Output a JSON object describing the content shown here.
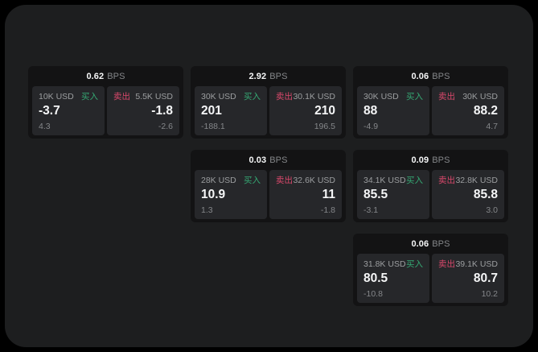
{
  "labels": {
    "bps_unit": "BPS",
    "buy": "买入",
    "sell": "卖出"
  },
  "colors": {
    "outer_bg": "#000000",
    "page_bg": "#1d1e1f",
    "card_bg": "#131314",
    "panel_bg": "#26272a",
    "text_primary": "#f5f6f7",
    "text_label": "#9c9ea0",
    "text_muted": "#85878a",
    "buy_green": "#35a873",
    "sell_red": "#d9486b"
  },
  "cards": [
    {
      "row": 1,
      "col": 1,
      "bps": "0.62",
      "buy": {
        "amount": "10K USD",
        "price": "-3.7",
        "delta": "4.3"
      },
      "sell": {
        "amount": "5.5K USD",
        "price": "-1.8",
        "delta": "-2.6"
      }
    },
    {
      "row": 1,
      "col": 2,
      "bps": "2.92",
      "buy": {
        "amount": "30K USD",
        "price": "201",
        "delta": "-188.1"
      },
      "sell": {
        "amount": "30.1K USD",
        "price": "210",
        "delta": "196.5"
      }
    },
    {
      "row": 1,
      "col": 3,
      "bps": "0.06",
      "buy": {
        "amount": "30K USD",
        "price": "88",
        "delta": "-4.9"
      },
      "sell": {
        "amount": "30K USD",
        "price": "88.2",
        "delta": "4.7"
      }
    },
    {
      "row": 2,
      "col": 2,
      "bps": "0.03",
      "buy": {
        "amount": "28K USD",
        "price": "10.9",
        "delta": "1.3"
      },
      "sell": {
        "amount": "32.6K USD",
        "price": "11",
        "delta": "-1.8"
      }
    },
    {
      "row": 2,
      "col": 3,
      "bps": "0.09",
      "buy": {
        "amount": "34.1K USD",
        "price": "85.5",
        "delta": "-3.1"
      },
      "sell": {
        "amount": "32.8K USD",
        "price": "85.8",
        "delta": "3.0"
      }
    },
    {
      "row": 3,
      "col": 3,
      "bps": "0.06",
      "buy": {
        "amount": "31.8K USD",
        "price": "80.5",
        "delta": "-10.8"
      },
      "sell": {
        "amount": "39.1K USD",
        "price": "80.7",
        "delta": "10.2"
      }
    }
  ]
}
